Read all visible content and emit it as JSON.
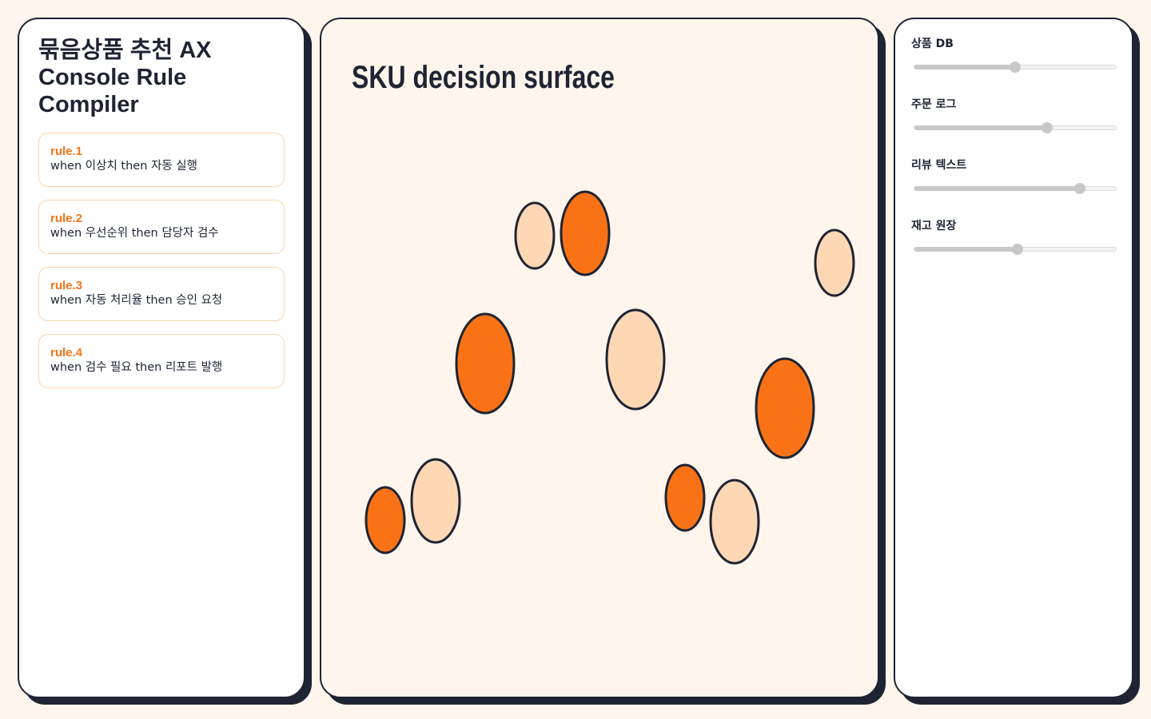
{
  "sidebar": {
    "title": "묶음상품 추천 AX Console Rule Compiler",
    "rules": [
      {
        "id": "rule.1",
        "text": "when 이상치 then 자동 실행"
      },
      {
        "id": "rule.2",
        "text": "when 우선순위 then 담당자 검수"
      },
      {
        "id": "rule.3",
        "text": "when 자동 처리율 then 승인 요청"
      },
      {
        "id": "rule.4",
        "text": "when 검수 필요 then 리포트 발행"
      }
    ]
  },
  "canvas": {
    "title": "SKU decision surface"
  },
  "controls": [
    {
      "label": "상품 DB",
      "value": 50
    },
    {
      "label": "주문 로그",
      "value": 66
    },
    {
      "label": "리뷰 텍스트",
      "value": 82
    },
    {
      "label": "재고 원장",
      "value": 51
    }
  ]
}
